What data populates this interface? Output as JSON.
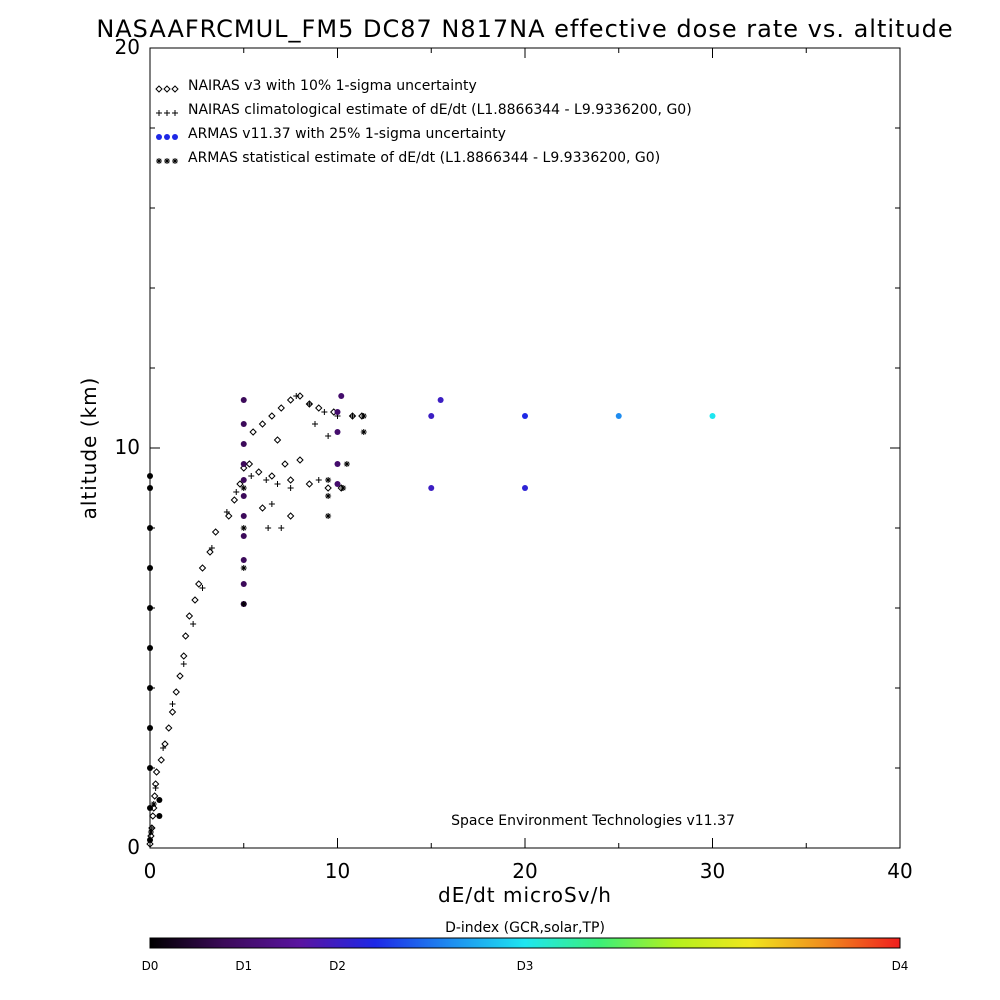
{
  "chart_data": {
    "type": "scatter",
    "title": "NASAAFRCMUL_FM5 DC87 N817NA effective dose rate vs. altitude",
    "xlabel": "dE/dt microSv/h",
    "ylabel": "altitude (km)",
    "xlim": [
      0,
      40
    ],
    "ylim": [
      0,
      20
    ],
    "x_ticks": [
      "0",
      "10",
      "20",
      "30",
      "40"
    ],
    "y_ticks": [
      "0",
      "10",
      "20"
    ],
    "grid": false,
    "legend_position": "top-left",
    "footer_note": "Space Environment Technologies v11.37",
    "colorbar": {
      "title": "D-index (GCR,solar,TP)",
      "labels": [
        {
          "text": "D0",
          "value": 0
        },
        {
          "text": "D1",
          "value": 0.5
        },
        {
          "text": "D2",
          "value": 1.0
        },
        {
          "text": "D3",
          "value": 2.0
        },
        {
          "text": "D4",
          "value": 4.0
        }
      ],
      "range": [
        0,
        4
      ],
      "stops": [
        "#000000",
        "#3c0a5a",
        "#5a14a0",
        "#1e28e6",
        "#1e8cf0",
        "#1ee6f0",
        "#3cf078",
        "#b4f01e",
        "#f0e61e",
        "#f08c1e",
        "#f01e1e"
      ]
    },
    "series": [
      {
        "name": "NAIRAS v3 with 10% 1-sigma uncertainty",
        "marker": "diamond",
        "color": "#000000",
        "points": [
          [
            0.0,
            0.1
          ],
          [
            0.05,
            0.3
          ],
          [
            0.1,
            0.5
          ],
          [
            0.15,
            0.8
          ],
          [
            0.2,
            1.0
          ],
          [
            0.25,
            1.3
          ],
          [
            0.3,
            1.6
          ],
          [
            0.35,
            1.9
          ],
          [
            0.6,
            2.2
          ],
          [
            0.8,
            2.6
          ],
          [
            1.0,
            3.0
          ],
          [
            1.2,
            3.4
          ],
          [
            1.4,
            3.9
          ],
          [
            1.6,
            4.3
          ],
          [
            1.8,
            4.8
          ],
          [
            1.9,
            5.3
          ],
          [
            2.1,
            5.8
          ],
          [
            2.4,
            6.2
          ],
          [
            2.6,
            6.6
          ],
          [
            2.8,
            7.0
          ],
          [
            3.2,
            7.4
          ],
          [
            3.5,
            7.9
          ],
          [
            4.2,
            8.3
          ],
          [
            4.5,
            8.7
          ],
          [
            4.8,
            9.1
          ],
          [
            5.0,
            9.5
          ],
          [
            5.3,
            9.6
          ],
          [
            5.8,
            9.4
          ],
          [
            6.5,
            9.3
          ],
          [
            7.5,
            9.2
          ],
          [
            8.5,
            9.1
          ],
          [
            9.5,
            9.0
          ],
          [
            10.2,
            9.0
          ],
          [
            5.5,
            10.4
          ],
          [
            6.0,
            10.6
          ],
          [
            6.5,
            10.8
          ],
          [
            7.0,
            11.0
          ],
          [
            7.5,
            11.2
          ],
          [
            8.0,
            11.3
          ],
          [
            8.5,
            11.1
          ],
          [
            9.0,
            11.0
          ],
          [
            9.8,
            10.9
          ],
          [
            10.8,
            10.8
          ],
          [
            11.3,
            10.8
          ],
          [
            6.0,
            8.5
          ],
          [
            7.5,
            8.3
          ],
          [
            8.0,
            9.7
          ],
          [
            6.8,
            10.2
          ],
          [
            7.2,
            9.6
          ]
        ]
      },
      {
        "name": "NAIRAS climatological estimate of dE/dt (L1.8866344 - L9.9336200, G0)",
        "marker": "plus",
        "color": "#000000",
        "points": [
          [
            0.1,
            0.5
          ],
          [
            0.3,
            1.5
          ],
          [
            0.7,
            2.5
          ],
          [
            1.2,
            3.6
          ],
          [
            1.8,
            4.6
          ],
          [
            2.3,
            5.6
          ],
          [
            2.8,
            6.5
          ],
          [
            3.3,
            7.5
          ],
          [
            4.1,
            8.4
          ],
          [
            4.6,
            8.9
          ],
          [
            5.4,
            9.3
          ],
          [
            6.2,
            9.2
          ],
          [
            6.8,
            9.1
          ],
          [
            7.5,
            9.0
          ],
          [
            6.5,
            8.6
          ],
          [
            6.3,
            8.0
          ],
          [
            7.0,
            8.0
          ],
          [
            9.0,
            9.2
          ],
          [
            9.5,
            10.3
          ],
          [
            8.8,
            10.6
          ],
          [
            7.8,
            11.3
          ],
          [
            8.5,
            11.1
          ],
          [
            9.3,
            10.9
          ],
          [
            10.0,
            10.8
          ],
          [
            10.8,
            10.8
          ]
        ]
      },
      {
        "name": "ARMAS v11.37 with 25% 1-sigma uncertainty",
        "marker": "filled-dot",
        "color": "#1e28e6",
        "points": [
          [
            0.0,
            0.2,
            0.0
          ],
          [
            0.0,
            1.0,
            0.0
          ],
          [
            0.0,
            2.0,
            0.0
          ],
          [
            0.0,
            3.0,
            0.0
          ],
          [
            0.0,
            4.0,
            0.0
          ],
          [
            0.0,
            5.0,
            0.0
          ],
          [
            0.0,
            6.0,
            0.0
          ],
          [
            0.0,
            7.0,
            0.0
          ],
          [
            0.0,
            8.0,
            0.0
          ],
          [
            0.0,
            9.0,
            0.0
          ],
          [
            0.0,
            9.3,
            0.0
          ],
          [
            0.5,
            0.8,
            0.0
          ],
          [
            0.5,
            1.2,
            0.0
          ],
          [
            5.0,
            6.1,
            0.4
          ],
          [
            5.0,
            6.6,
            0.4
          ],
          [
            5.0,
            7.2,
            0.4
          ],
          [
            5.0,
            7.8,
            0.4
          ],
          [
            5.0,
            8.3,
            0.4
          ],
          [
            5.0,
            8.8,
            0.4
          ],
          [
            5.0,
            9.2,
            0.4
          ],
          [
            5.0,
            9.6,
            0.4
          ],
          [
            5.0,
            10.1,
            0.4
          ],
          [
            5.0,
            10.6,
            0.4
          ],
          [
            5.0,
            11.2,
            0.4
          ],
          [
            10.0,
            9.1,
            0.5
          ],
          [
            10.0,
            9.6,
            0.5
          ],
          [
            10.0,
            10.4,
            0.5
          ],
          [
            10.0,
            10.9,
            0.5
          ],
          [
            10.2,
            11.3,
            0.5
          ],
          [
            15.0,
            9.0,
            1.0
          ],
          [
            15.0,
            10.8,
            1.0
          ],
          [
            15.5,
            11.2,
            1.0
          ],
          [
            20.0,
            9.0,
            1.1
          ],
          [
            20.0,
            10.8,
            1.2
          ],
          [
            25.0,
            10.8,
            1.6
          ],
          [
            30.0,
            10.8,
            2.0
          ]
        ]
      },
      {
        "name": "ARMAS statistical estimate of dE/dt (L1.8866344 - L9.9336200, G0)",
        "marker": "asterisk",
        "color": "#000000",
        "points": [
          [
            0.05,
            0.4
          ],
          [
            0.2,
            1.1
          ],
          [
            5.0,
            6.1
          ],
          [
            5.0,
            7.0
          ],
          [
            5.0,
            8.0
          ],
          [
            5.0,
            9.0
          ],
          [
            9.5,
            8.3
          ],
          [
            9.5,
            8.8
          ],
          [
            9.5,
            9.2
          ],
          [
            10.3,
            9.0
          ],
          [
            10.5,
            9.6
          ],
          [
            11.4,
            10.4
          ],
          [
            11.4,
            10.8
          ]
        ]
      }
    ]
  }
}
